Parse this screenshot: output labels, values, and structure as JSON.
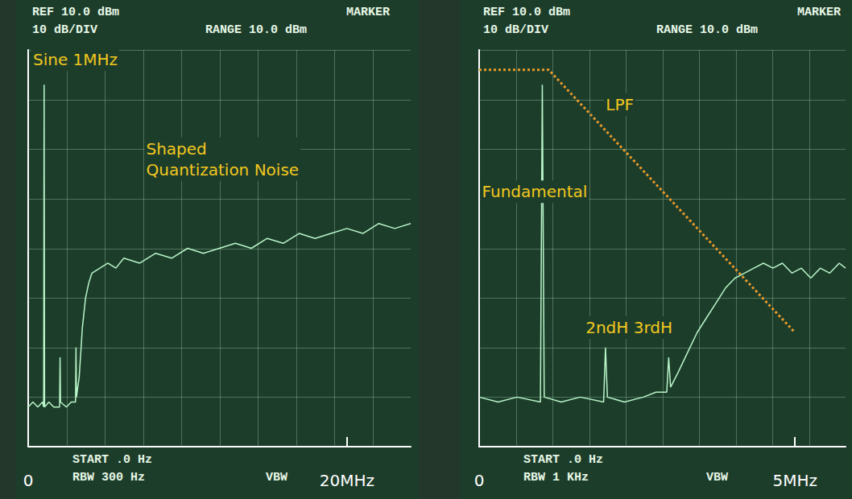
{
  "chart_data": [
    {
      "type": "line",
      "xlim": [
        0,
        24
      ],
      "ylim": [
        -70,
        10
      ],
      "xticks": [
        0,
        {
          "value": 20,
          "label": "20MHz"
        }
      ],
      "tick_labels": "x",
      "grid": true,
      "header": [
        "REF 10.0 dBm",
        "MARKER",
        "10 dB/DIV",
        "RANGE 10.0 dBm"
      ],
      "footer": [
        "START .0 Hz",
        "RBW 300 Hz",
        "VBW"
      ],
      "series": [
        {
          "color": "#b8f5c8",
          "x": [
            0,
            0.3,
            0.6,
            0.9,
            0.97,
            1.0,
            1.03,
            1.3,
            1.6,
            1.97,
            2.0,
            2.03,
            2.4,
            2.7,
            2.97,
            3.0,
            3.03,
            3.2,
            3.4,
            3.6,
            3.8,
            4.0,
            4.5,
            5,
            5.5,
            6,
            7,
            8,
            9,
            10,
            11,
            12,
            13,
            14,
            15,
            16,
            17,
            18,
            19,
            20,
            21,
            22,
            23,
            24
          ],
          "values": [
            -62,
            -61,
            -62,
            -61,
            -62,
            3,
            -62,
            -61,
            -62,
            -62,
            -52,
            -61,
            -62,
            -61,
            -61,
            -50,
            -60,
            -56,
            -46,
            -40,
            -37,
            -35,
            -34,
            -33,
            -34,
            -32,
            -33,
            -31,
            -32,
            -30,
            -31,
            -30,
            -29,
            -30,
            -28,
            -29,
            -27,
            -28,
            -27,
            -26,
            -27,
            -25,
            -26,
            -25
          ]
        }
      ],
      "annotations": [
        {
          "text": "Sine 1MHz",
          "x": 0.2,
          "y": 8
        },
        {
          "text": "Shaped Quantization Noise",
          "x": 7.3,
          "y": -12
        }
      ]
    },
    {
      "type": "line",
      "xlim": [
        0,
        5.8
      ],
      "ylim": [
        -70,
        10
      ],
      "xticks": [
        0,
        {
          "value": 5,
          "label": "5MHz"
        }
      ],
      "tick_labels": "x",
      "grid": true,
      "header": [
        "REF 10.0 dBm",
        "MARKER",
        "10 dB/DIV",
        "RANGE 10.0 dBm"
      ],
      "footer": [
        "START .0 Hz",
        "RBW 1 KHz",
        "VBW"
      ],
      "series": [
        {
          "color": "#b8f5c8",
          "x": [
            0,
            0.3,
            0.6,
            0.97,
            1.0,
            1.03,
            1.3,
            1.6,
            1.97,
            2.0,
            2.03,
            2.3,
            2.6,
            2.8,
            2.97,
            3.0,
            3.03,
            3.15,
            3.3,
            3.45,
            3.6,
            3.75,
            3.9,
            4.05,
            4.2,
            4.35,
            4.5,
            4.65,
            4.8,
            4.95,
            5.1,
            5.25,
            5.4,
            5.55,
            5.7,
            5.8
          ],
          "values": [
            -60,
            -61,
            -60,
            -61,
            3,
            -60,
            -61,
            -60,
            -61,
            -50,
            -60,
            -61,
            -60,
            -59,
            -59,
            -52,
            -58,
            -55,
            -51,
            -47,
            -44,
            -41,
            -38,
            -36,
            -35,
            -34,
            -33,
            -34,
            -33,
            -35,
            -34,
            -36,
            -34,
            -35,
            -33,
            -34
          ]
        },
        {
          "color": "#e89a2a",
          "line_style": "dotted",
          "x": [
            0,
            1.1,
            5.0
          ],
          "values": [
            6,
            6,
            -47
          ]
        }
      ],
      "annotations": [
        {
          "text": "LPF",
          "x": 1.98,
          "y": -1
        },
        {
          "text": "Fundamental",
          "x": 0.02,
          "y": -18.6
        },
        {
          "text": "2ndH 3rdH",
          "x": 1.66,
          "y": -46
        }
      ]
    }
  ]
}
